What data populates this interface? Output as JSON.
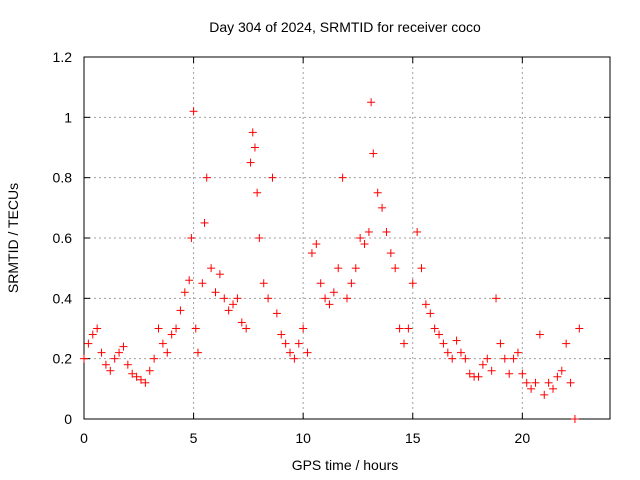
{
  "chart_data": {
    "type": "scatter",
    "title": "Day 304 of 2024, SRMTID for receiver coco",
    "xlabel": "GPS time / hours",
    "ylabel": "SRMTID / TECUs",
    "xlim": [
      0,
      24
    ],
    "ylim": [
      0,
      1.2
    ],
    "x_ticks": [
      0,
      5,
      10,
      15,
      20
    ],
    "x_tick_labels": [
      "0",
      "5",
      "10",
      "15",
      "20"
    ],
    "y_ticks": [
      0,
      0.2,
      0.4,
      0.6,
      0.8,
      1.0,
      1.2
    ],
    "y_tick_labels": [
      "0",
      "0.2",
      "0.4",
      "0.6",
      "0.8",
      "1",
      "1.2"
    ],
    "grid": true,
    "marker": "plus",
    "color": "#ff0000",
    "series": [
      {
        "name": "SRMTID",
        "x": [
          0.0,
          0.2,
          0.4,
          0.6,
          0.8,
          1.0,
          1.2,
          1.4,
          1.6,
          1.8,
          2.0,
          2.2,
          2.4,
          2.6,
          2.8,
          3.0,
          3.2,
          3.4,
          3.6,
          3.8,
          4.0,
          4.2,
          4.4,
          4.6,
          4.8,
          4.9,
          5.0,
          5.1,
          5.2,
          5.4,
          5.5,
          5.6,
          5.8,
          6.0,
          6.2,
          6.4,
          6.6,
          6.8,
          7.0,
          7.2,
          7.4,
          7.6,
          7.7,
          7.8,
          7.9,
          8.0,
          8.2,
          8.4,
          8.6,
          8.8,
          9.0,
          9.2,
          9.4,
          9.6,
          9.8,
          10.0,
          10.2,
          10.4,
          10.6,
          10.8,
          11.0,
          11.2,
          11.4,
          11.6,
          11.8,
          12.0,
          12.2,
          12.4,
          12.6,
          12.8,
          13.0,
          13.1,
          13.2,
          13.4,
          13.6,
          13.8,
          14.0,
          14.2,
          14.4,
          14.6,
          14.8,
          15.0,
          15.2,
          15.4,
          15.6,
          15.8,
          16.0,
          16.2,
          16.4,
          16.6,
          16.8,
          17.0,
          17.2,
          17.4,
          17.6,
          17.8,
          18.0,
          18.2,
          18.4,
          18.6,
          18.8,
          19.0,
          19.2,
          19.4,
          19.6,
          19.8,
          20.0,
          20.2,
          20.4,
          20.6,
          20.8,
          21.0,
          21.2,
          21.4,
          21.6,
          21.8,
          22.0,
          22.2,
          22.4,
          22.6
        ],
        "y": [
          0.2,
          0.25,
          0.28,
          0.3,
          0.22,
          0.18,
          0.16,
          0.2,
          0.22,
          0.24,
          0.18,
          0.15,
          0.14,
          0.13,
          0.12,
          0.16,
          0.2,
          0.3,
          0.25,
          0.22,
          0.28,
          0.3,
          0.36,
          0.42,
          0.46,
          0.6,
          1.02,
          0.3,
          0.22,
          0.45,
          0.65,
          0.8,
          0.5,
          0.42,
          0.48,
          0.4,
          0.36,
          0.38,
          0.4,
          0.32,
          0.3,
          0.85,
          0.95,
          0.9,
          0.75,
          0.6,
          0.45,
          0.4,
          0.8,
          0.35,
          0.28,
          0.25,
          0.22,
          0.2,
          0.25,
          0.3,
          0.22,
          0.55,
          0.58,
          0.45,
          0.4,
          0.38,
          0.42,
          0.5,
          0.8,
          0.4,
          0.45,
          0.5,
          0.6,
          0.58,
          0.62,
          1.05,
          0.88,
          0.75,
          0.7,
          0.62,
          0.55,
          0.5,
          0.3,
          0.25,
          0.3,
          0.45,
          0.62,
          0.5,
          0.38,
          0.35,
          0.3,
          0.28,
          0.25,
          0.22,
          0.2,
          0.26,
          0.22,
          0.2,
          0.15,
          0.14,
          0.14,
          0.18,
          0.2,
          0.16,
          0.4,
          0.25,
          0.2,
          0.15,
          0.2,
          0.22,
          0.15,
          0.12,
          0.1,
          0.12,
          0.28,
          0.08,
          0.12,
          0.1,
          0.14,
          0.16,
          0.25,
          0.12,
          0.0,
          0.3
        ]
      }
    ]
  }
}
